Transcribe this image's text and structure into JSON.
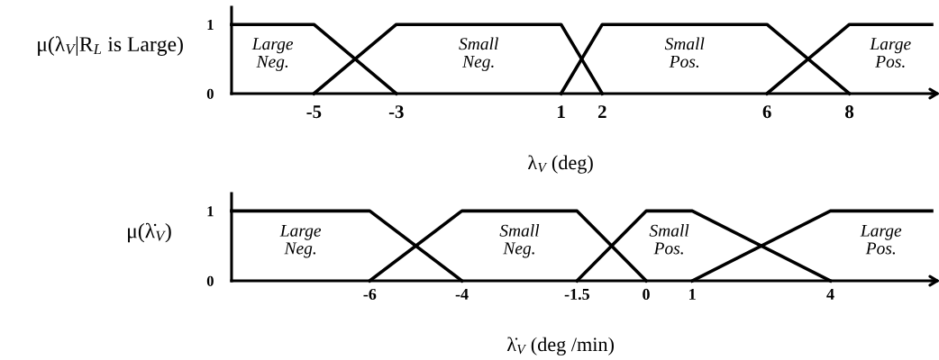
{
  "chart_data": [
    {
      "type": "line",
      "ylabel": "μ(λ$_{V}$|R$_{L}$ is Large)",
      "xlabel": "λ$_{V}$ (deg)",
      "xlim": [
        -7,
        10
      ],
      "xticks": [
        -5,
        -3,
        1,
        2,
        6,
        8
      ],
      "ylim": [
        0,
        1.25
      ],
      "yticks": [
        0,
        1
      ],
      "series": [
        {
          "name": "Large\nNeg.",
          "color": "#000000",
          "x": [
            -7,
            -5,
            -3
          ],
          "values": [
            1,
            1,
            0
          ]
        },
        {
          "name": "Small\nNeg.",
          "color": "#000000",
          "x": [
            -5,
            -3,
            1,
            2
          ],
          "values": [
            0,
            1,
            1,
            0
          ]
        },
        {
          "name": "Small\nPos.",
          "color": "#000000",
          "x": [
            1,
            2,
            6,
            8
          ],
          "values": [
            0,
            1,
            1,
            0
          ]
        },
        {
          "name": "Large\nPos.",
          "color": "#000000",
          "x": [
            6,
            8,
            10
          ],
          "values": [
            0,
            1,
            1
          ]
        }
      ]
    },
    {
      "type": "line",
      "ylabel": "μ(λ̇$_{V}$)",
      "xlabel": "λ̇$_{V}$ (deg /min)",
      "xlim": [
        -9,
        6.2
      ],
      "xticks": [
        -6,
        -4,
        -1.5,
        0,
        1,
        4
      ],
      "ylim": [
        0,
        1.25
      ],
      "yticks": [
        0,
        1
      ],
      "series": [
        {
          "name": "Large\nNeg.",
          "color": "#000000",
          "x": [
            -9,
            -6,
            -4
          ],
          "values": [
            1,
            1,
            0
          ]
        },
        {
          "name": "Small\nNeg.",
          "color": "#000000",
          "x": [
            -6,
            -4,
            -1.5,
            0
          ],
          "values": [
            0,
            1,
            1,
            0
          ]
        },
        {
          "name": "Small\nPos.",
          "color": "#000000",
          "x": [
            -1.5,
            0,
            1,
            4
          ],
          "values": [
            0,
            1,
            1,
            0
          ]
        },
        {
          "name": "Large\nPos.",
          "color": "#000000",
          "x": [
            1,
            4,
            6.2
          ],
          "values": [
            0,
            1,
            1
          ]
        }
      ]
    }
  ]
}
